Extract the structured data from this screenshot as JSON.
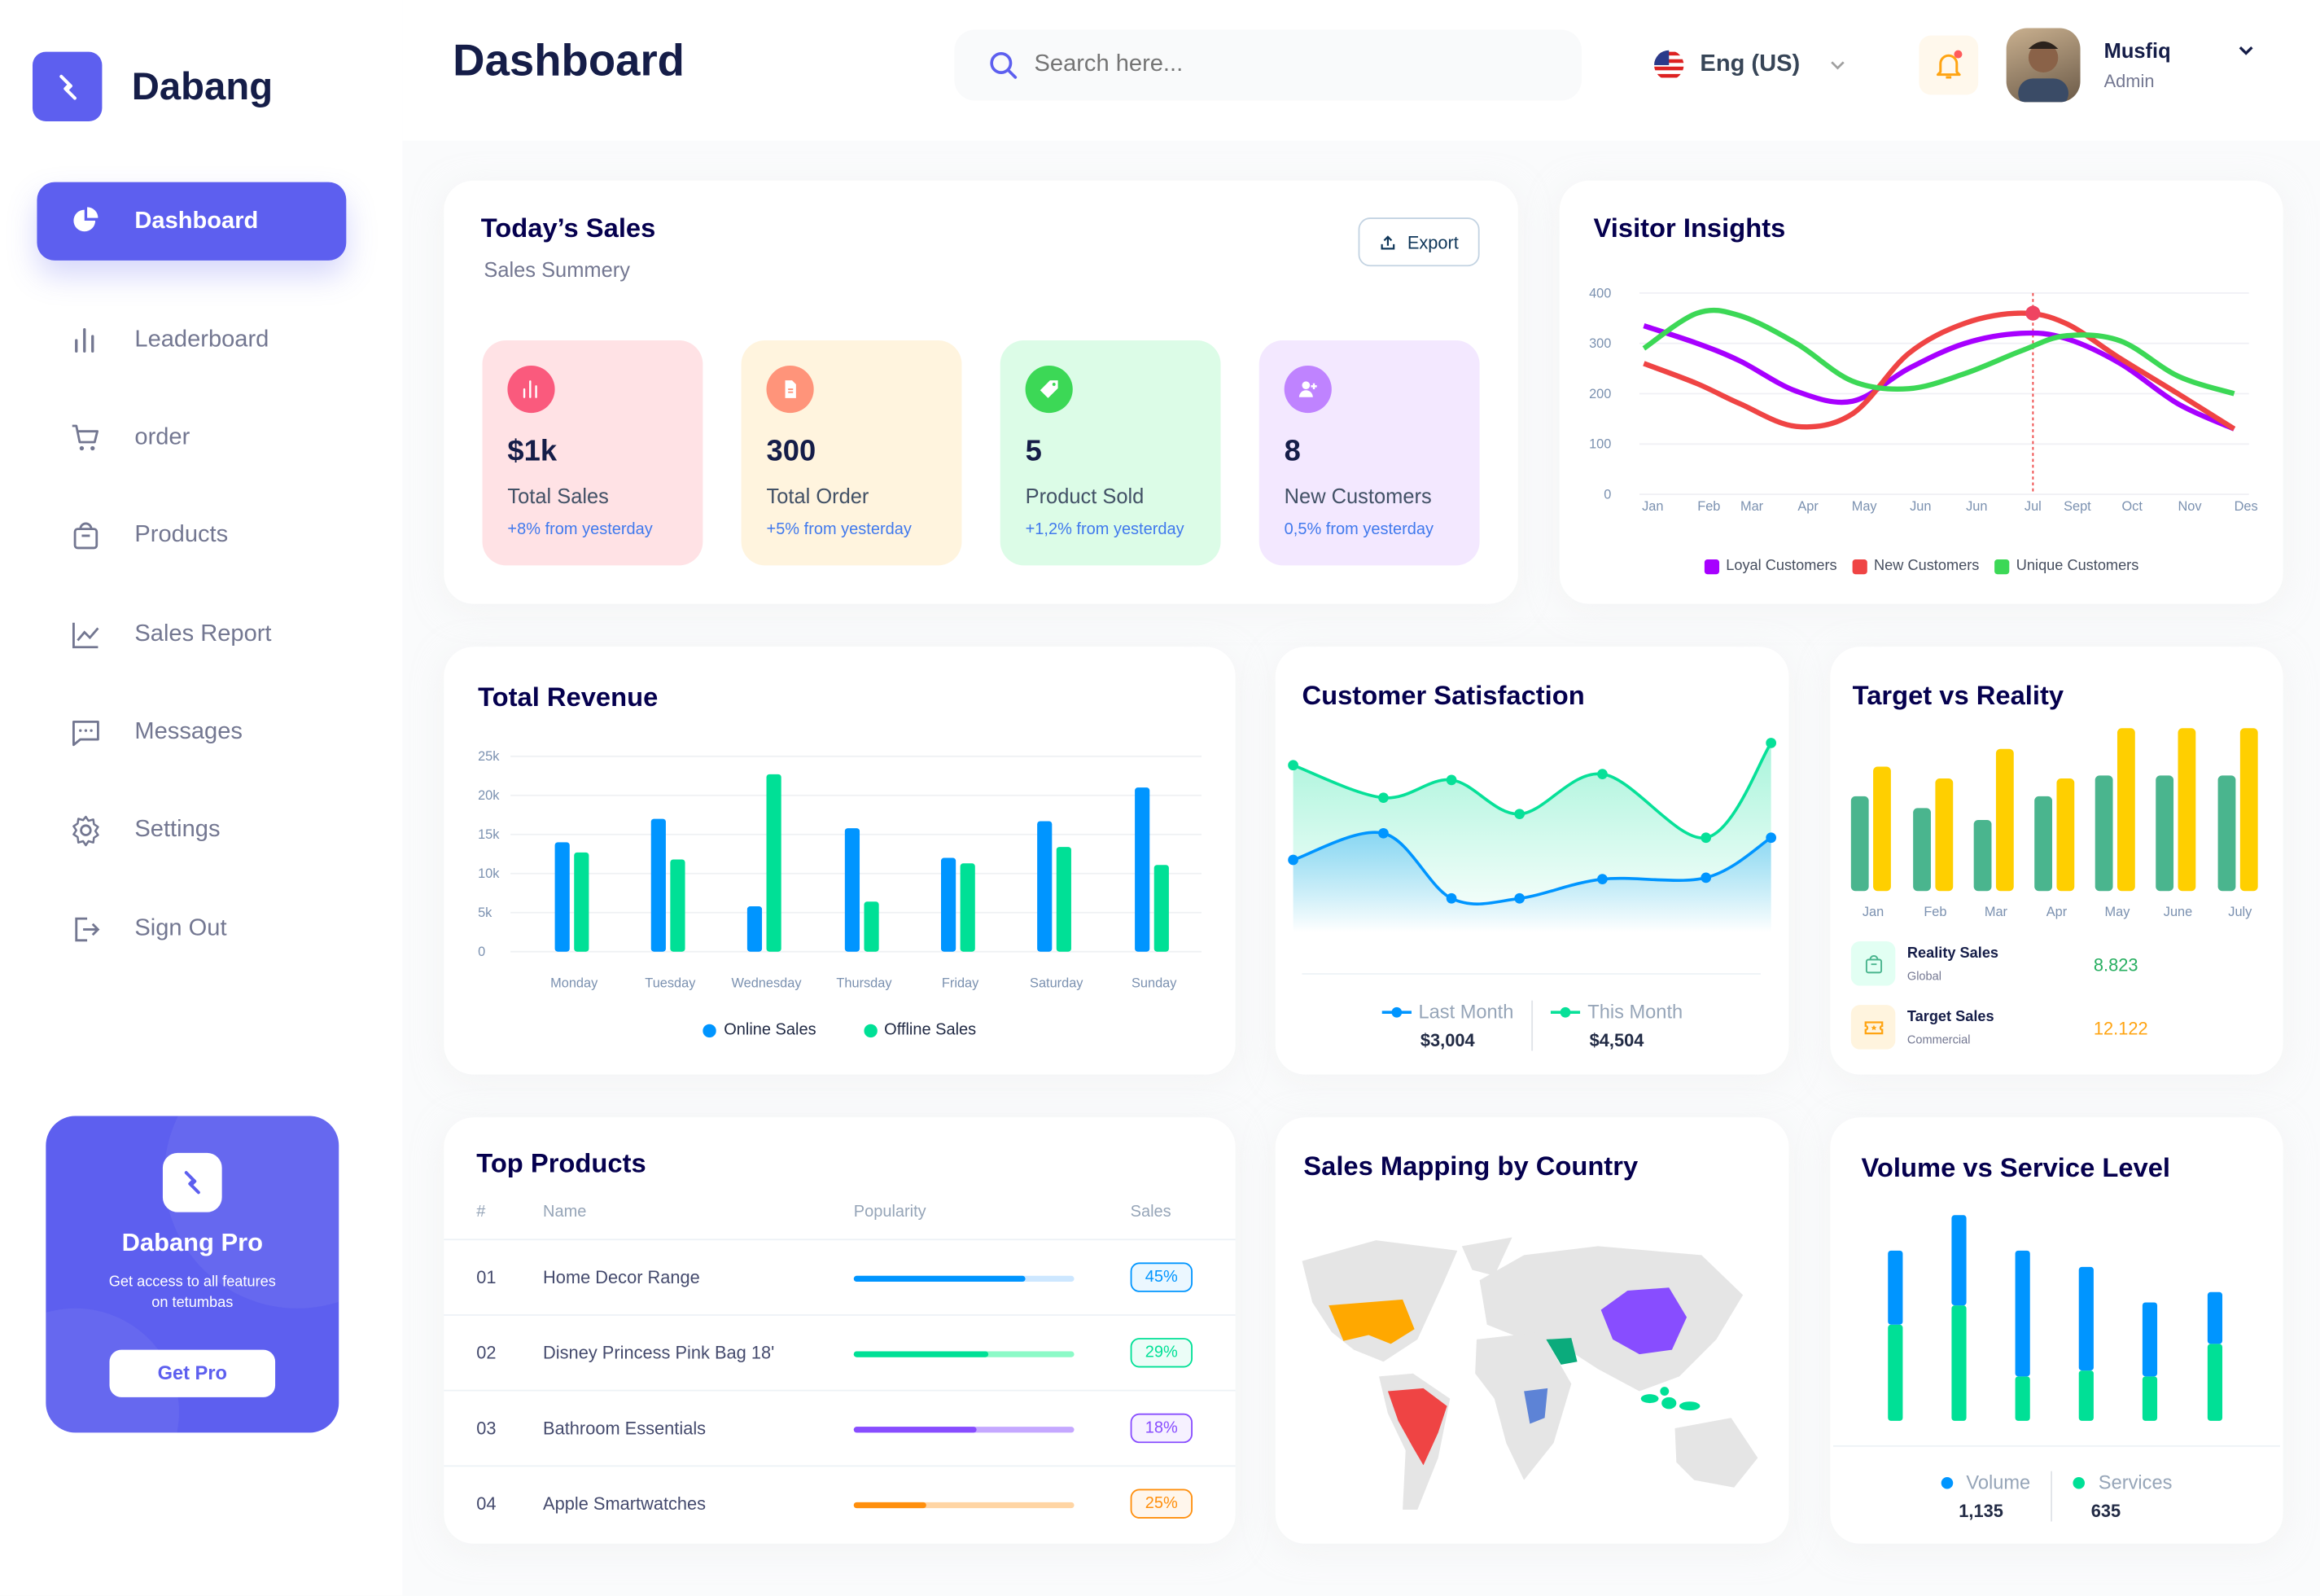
{
  "brand": {
    "name": "Dabang"
  },
  "sidebar": {
    "items": [
      {
        "label": "Dashboard",
        "icon": "pie-chart-icon",
        "active": true
      },
      {
        "label": "Leaderboard",
        "icon": "bar-chart-icon"
      },
      {
        "label": "order",
        "icon": "cart-icon"
      },
      {
        "label": "Products",
        "icon": "shopping-bag-icon"
      },
      {
        "label": "Sales Report",
        "icon": "line-chart-icon"
      },
      {
        "label": "Messages",
        "icon": "message-icon"
      },
      {
        "label": "Settings",
        "icon": "gear-icon"
      },
      {
        "label": "Sign Out",
        "icon": "sign-out-icon"
      }
    ],
    "pro": {
      "title": "Dabang Pro",
      "text": "Get access to all features on tetumbas",
      "button": "Get Pro"
    }
  },
  "header": {
    "title": "Dashboard",
    "search_placeholder": "Search here...",
    "language": "Eng (US)",
    "user_name": "Musfiq",
    "user_role": "Admin",
    "notification": true
  },
  "colors": {
    "accent": "#5d5fef",
    "blue": "#0095ff",
    "green": "#00e096",
    "purple": "#a700ff",
    "red": "#ef4444",
    "lightgreen": "#3cd856",
    "teal": "#4ab58e",
    "yellow": "#ffcf00",
    "orange": "#ffa412"
  },
  "todays_sales": {
    "title": "Today’s Sales",
    "subtitle": "Sales Summery",
    "export": "Export",
    "stats": [
      {
        "value": "$1k",
        "label": "Total Sales",
        "change": "+8% from yesterday",
        "bg": "#ffe2e5",
        "icon_bg": "#fa5a7d",
        "icon": "bar-chart-icon"
      },
      {
        "value": "300",
        "label": "Total Order",
        "change": "+5% from yesterday",
        "bg": "#fff4de",
        "icon_bg": "#ff947a",
        "icon": "document-icon"
      },
      {
        "value": "5",
        "label": "Product Sold",
        "change": "+1,2% from yesterday",
        "bg": "#dcfce7",
        "icon_bg": "#3cd856",
        "icon": "tag-icon"
      },
      {
        "value": "8",
        "label": "New Customers",
        "change": "0,5% from yesterday",
        "bg": "#f3e8ff",
        "icon_bg": "#bf83ff",
        "icon": "add-user-icon"
      }
    ]
  },
  "chart_data": [
    {
      "id": "visitor",
      "type": "line",
      "title": "Visitor Insights",
      "categories": [
        "Jan",
        "Feb",
        "Mar",
        "Apr",
        "May",
        "Jun",
        "Jun",
        "Jul",
        "Sept",
        "Oct",
        "Nov",
        "Des"
      ],
      "ylim": [
        0,
        400
      ],
      "yticks": [
        0,
        100,
        200,
        300,
        400
      ],
      "grid": true,
      "legend": "bottom",
      "highlight": {
        "series": "New Customers",
        "category_index": 7
      },
      "series": [
        {
          "name": "Loyal Customers",
          "color": "#a700ff",
          "values": [
            335,
            300,
            265,
            205,
            185,
            250,
            300,
            320,
            310,
            260,
            180,
            130
          ]
        },
        {
          "name": "New Customers",
          "color": "#ef4444",
          "values": [
            260,
            220,
            180,
            135,
            160,
            280,
            340,
            360,
            340,
            270,
            200,
            130
          ]
        },
        {
          "name": "Unique Customers",
          "color": "#3cd856",
          "values": [
            290,
            360,
            355,
            300,
            225,
            210,
            240,
            285,
            315,
            305,
            235,
            200
          ]
        }
      ]
    },
    {
      "id": "revenue",
      "type": "bar",
      "title": "Total Revenue",
      "categories": [
        "Monday",
        "Tuesday",
        "Wednesday",
        "Thursday",
        "Friday",
        "Saturday",
        "Sunday"
      ],
      "ylim": [
        0,
        25000
      ],
      "yticks": [
        "0",
        "5k",
        "10k",
        "15k",
        "20k",
        "25k"
      ],
      "grid": true,
      "legend": "bottom",
      "series": [
        {
          "name": "Online Sales",
          "color": "#0095ff",
          "values": [
            14000,
            17000,
            5800,
            15800,
            12000,
            16700,
            21000
          ]
        },
        {
          "name": "Offline Sales",
          "color": "#00e096",
          "values": [
            12700,
            11800,
            22700,
            6400,
            11300,
            13400,
            11100
          ]
        }
      ]
    },
    {
      "id": "satisfaction",
      "type": "area",
      "title": "Customer Satisfaction",
      "ylim": [
        0,
        140
      ],
      "legend": "bottom",
      "series": [
        {
          "name": "Last Month",
          "color": "#0095ff",
          "total": "$3,004",
          "values": [
            49,
            67,
            23,
            23,
            36,
            37,
            64
          ]
        },
        {
          "name": "This Month",
          "color": "#07e098",
          "total": "$4,504",
          "values": [
            113,
            91,
            103,
            80,
            107,
            64,
            128
          ]
        }
      ]
    },
    {
      "id": "target",
      "type": "bar",
      "title": "Target vs Reality",
      "categories": [
        "Jan",
        "Feb",
        "Mar",
        "Apr",
        "May",
        "June",
        "July"
      ],
      "ylim": [
        0,
        110
      ],
      "series": [
        {
          "name": "Reality Sales",
          "sub": "Global",
          "total": "8.823",
          "color": "#4ab58e",
          "values": [
            64,
            56,
            48,
            64,
            78,
            78,
            78
          ]
        },
        {
          "name": "Target Sales",
          "sub": "Commercial",
          "total": "12.122",
          "color": "#ffcf00",
          "values": [
            84,
            76,
            96,
            76,
            110,
            110,
            110
          ]
        }
      ]
    },
    {
      "id": "volume",
      "type": "stacked-bar",
      "title": "Volume vs Service Level",
      "ylim": [
        0,
        140
      ],
      "legend": "bottom",
      "series": [
        {
          "name": "Volume",
          "color": "#0095ff",
          "total": "1,135",
          "values": [
            50,
            61,
            85,
            70,
            50,
            35
          ]
        },
        {
          "name": "Services",
          "color": "#00e096",
          "total": "635",
          "values": [
            65,
            78,
            30,
            34,
            30,
            52
          ]
        }
      ]
    }
  ],
  "top_products": {
    "title": "Top Products",
    "columns": [
      "#",
      "Name",
      "Popularity",
      "Sales"
    ],
    "rows": [
      {
        "rank": "01",
        "name": "Home Decor Range",
        "popularity": 0.78,
        "sales": "45%",
        "color": "#0095ff",
        "track": "#cde7ff"
      },
      {
        "rank": "02",
        "name": "Disney Princess Pink Bag 18'",
        "popularity": 0.61,
        "sales": "29%",
        "color": "#00e096",
        "track": "#8cfac7"
      },
      {
        "rank": "03",
        "name": "Bathroom Essentials",
        "popularity": 0.56,
        "sales": "18%",
        "color": "#884dff",
        "track": "#c5a8ff"
      },
      {
        "rank": "04",
        "name": "Apple Smartwatches",
        "popularity": 0.33,
        "sales": "25%",
        "color": "#ff8f0d",
        "track": "#ffd5a4"
      }
    ]
  },
  "sales_map": {
    "title": "Sales Mapping by Country",
    "highlights": [
      {
        "region": "USA",
        "color": "#ffa800"
      },
      {
        "region": "Brazil",
        "color": "#ef4444"
      },
      {
        "region": "China",
        "color": "#884dff"
      },
      {
        "region": "Saudi Arabia",
        "color": "#0bab7c"
      },
      {
        "region": "Congo",
        "color": "#5d83d6"
      },
      {
        "region": "Indonesia",
        "color": "#00e096"
      }
    ]
  }
}
